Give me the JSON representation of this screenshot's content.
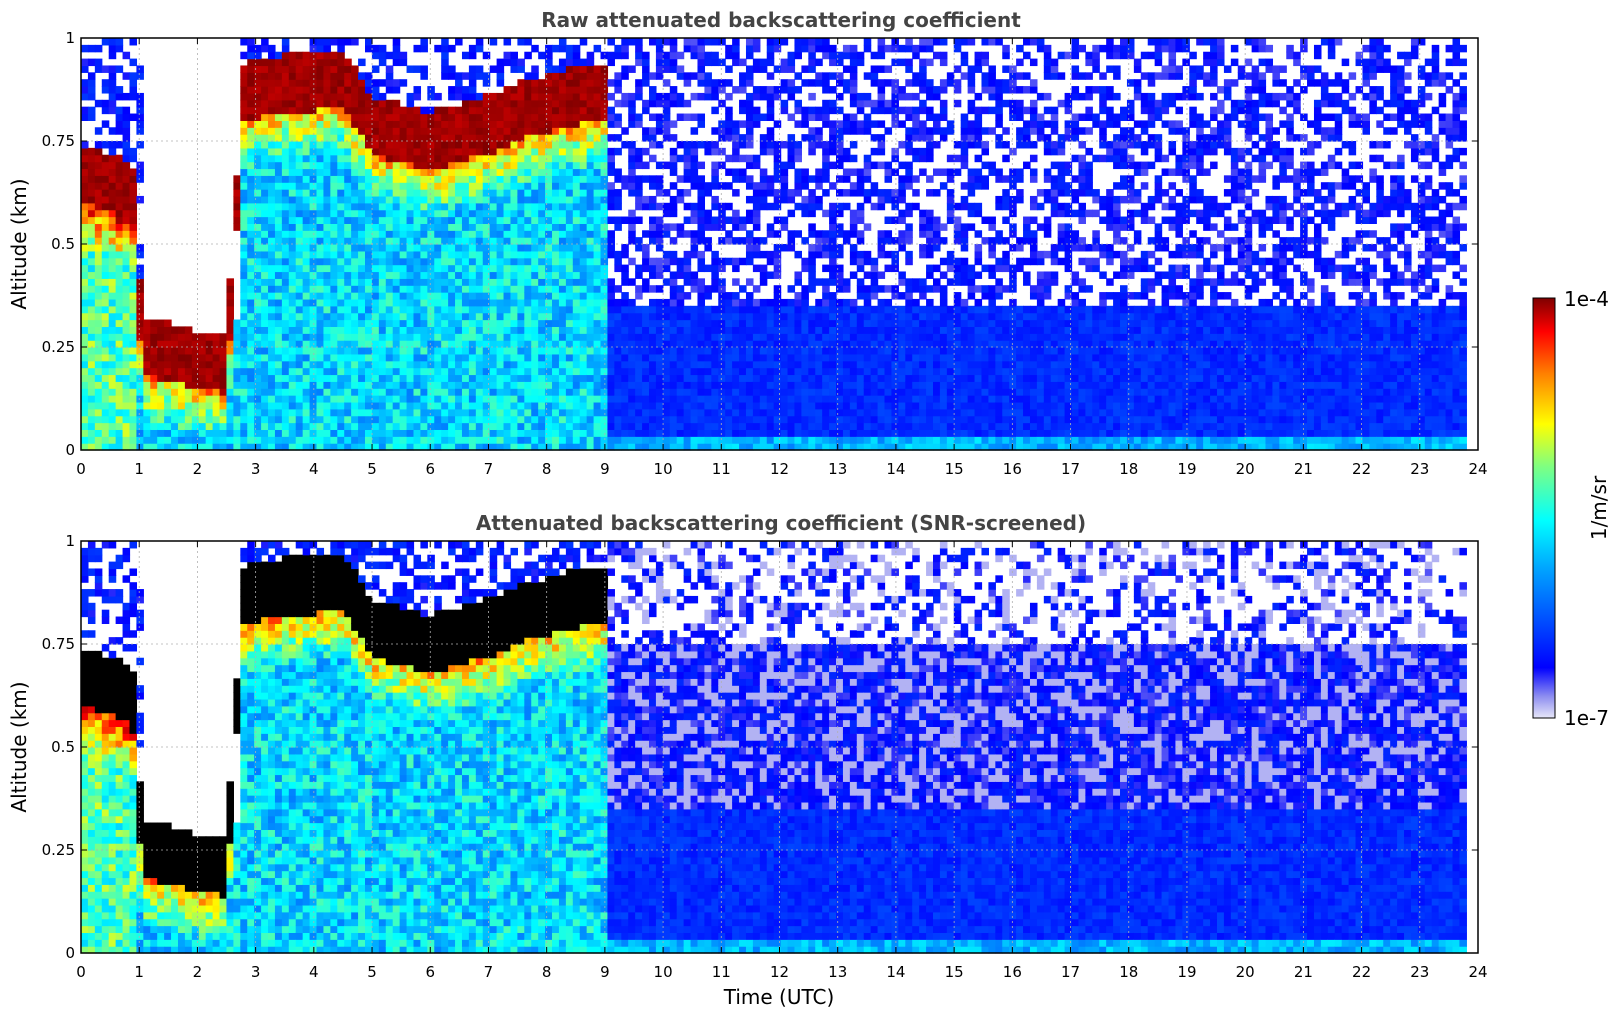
{
  "chart_data": [
    {
      "type": "heatmap",
      "title": "Raw attenuated backscattering coefficient",
      "xlabel": "",
      "ylabel": "Altitude (km)",
      "xlim": [
        0,
        24
      ],
      "ylim": [
        0,
        1
      ],
      "xticks": [
        "0",
        "1",
        "2",
        "3",
        "4",
        "5",
        "6",
        "7",
        "8",
        "9",
        "10",
        "11",
        "12",
        "13",
        "14",
        "15",
        "16",
        "17",
        "18",
        "19",
        "20",
        "21",
        "22",
        "23",
        "24"
      ],
      "yticks": [
        "0",
        "0.25",
        "0.5",
        "0.75",
        "1"
      ],
      "grid": true,
      "cloud_base_km": [
        [
          0.0,
          0.6
        ],
        [
          0.5,
          0.58
        ],
        [
          0.9,
          0.55
        ],
        [
          1.05,
          0.18
        ],
        [
          1.5,
          0.17
        ],
        [
          2.0,
          0.15
        ],
        [
          2.5,
          0.14
        ],
        [
          2.8,
          0.8
        ],
        [
          3.5,
          0.82
        ],
        [
          4.5,
          0.83
        ],
        [
          5.0,
          0.72
        ],
        [
          6.0,
          0.68
        ],
        [
          7.0,
          0.72
        ],
        [
          7.7,
          0.76
        ],
        [
          8.5,
          0.79
        ],
        [
          9.1,
          0.8
        ]
      ],
      "cloud_thickness_km": 0.14,
      "mask_region": {
        "x": [
          1.05,
          2.75
        ],
        "ylow_km": 0.32
      },
      "overflow_color": "#7f0000"
    },
    {
      "type": "heatmap",
      "title": "Attenuated backscattering coefficient (SNR-screened)",
      "xlabel": "Time (UTC)",
      "ylabel": "Altitude (km)",
      "xlim": [
        0,
        24
      ],
      "ylim": [
        0,
        1
      ],
      "xticks": [
        "0",
        "1",
        "2",
        "3",
        "4",
        "5",
        "6",
        "7",
        "8",
        "9",
        "10",
        "11",
        "12",
        "13",
        "14",
        "15",
        "16",
        "17",
        "18",
        "19",
        "20",
        "21",
        "22",
        "23",
        "24"
      ],
      "yticks": [
        "0",
        "0.25",
        "0.5",
        "0.75",
        "1"
      ],
      "grid": true,
      "cloud_base_km": [
        [
          0.0,
          0.6
        ],
        [
          0.5,
          0.58
        ],
        [
          0.9,
          0.55
        ],
        [
          1.05,
          0.18
        ],
        [
          1.5,
          0.17
        ],
        [
          2.0,
          0.15
        ],
        [
          2.5,
          0.14
        ],
        [
          2.8,
          0.8
        ],
        [
          3.5,
          0.82
        ],
        [
          4.5,
          0.83
        ],
        [
          5.0,
          0.72
        ],
        [
          6.0,
          0.68
        ],
        [
          7.0,
          0.72
        ],
        [
          7.7,
          0.76
        ],
        [
          8.5,
          0.79
        ],
        [
          9.1,
          0.8
        ]
      ],
      "cloud_thickness_km": 0.14,
      "mask_region": {
        "x": [
          1.05,
          2.75
        ],
        "ylow_km": 0.32
      },
      "overflow_color": "#000000"
    }
  ],
  "colorbar": {
    "label": "1/m/sr",
    "max_label": "1e-4",
    "min_label": "1e-7",
    "scale": "log",
    "colormap": "jet"
  }
}
